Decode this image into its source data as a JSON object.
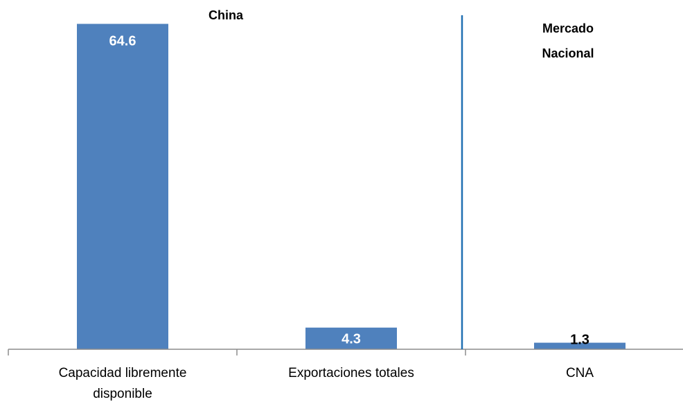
{
  "chart_data": {
    "type": "bar",
    "categories": [
      "Capacidad libremente disponible",
      "Exportaciones totales",
      "CNA"
    ],
    "category_lines": [
      [
        "Capacidad libremente",
        "disponible"
      ],
      [
        "Exportaciones totales"
      ],
      [
        "CNA"
      ]
    ],
    "values": [
      64.6,
      4.3,
      1.3
    ],
    "value_labels": [
      "64.6",
      "4.3",
      "1.3"
    ],
    "groups": [
      {
        "lines": [
          "China"
        ]
      },
      {
        "lines": [
          "Mercado",
          "Nacional"
        ]
      }
    ],
    "ylim": [
      0,
      67
    ],
    "bar_color": "#4f81bd",
    "separator_color": "#1f6fb2",
    "grid": false,
    "legend": "none"
  }
}
